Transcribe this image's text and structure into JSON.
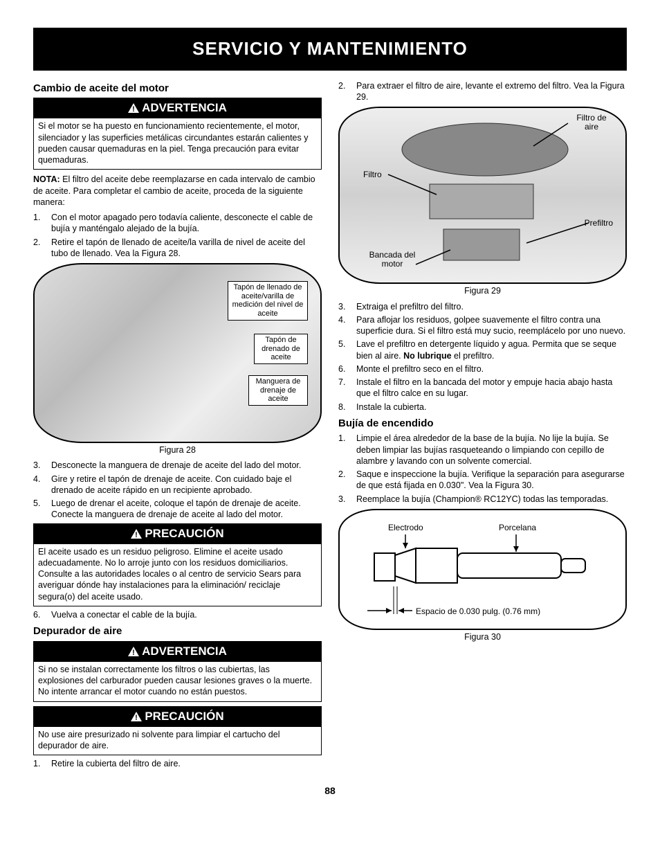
{
  "header": "SERVICIO Y MANTENIMIENTO",
  "pageNumber": "88",
  "banners": {
    "advertencia": "ADVERTENCIA",
    "precaucion": "PRECAUCIÓN"
  },
  "left": {
    "h_oil": "Cambio de aceite del motor",
    "warn1": "Si el motor se ha puesto en funcionamiento recientemente, el motor, silenciador y las superficies metálicas circundantes estarán calientes y pueden causar quemaduras en la piel. Tenga precaución para evitar quemaduras.",
    "nota_label": "NOTA:",
    "nota": " El filtro del aceite debe reemplazarse en cada intervalo de cambio de aceite. Para completar el cambio de aceite, proceda de la siguiente manera:",
    "list1": [
      {
        "n": "1.",
        "t": "Con el motor apagado pero todavía caliente, desconecte el cable de bujía y manténgalo alejado de la bujía."
      },
      {
        "n": "2.",
        "t": "Retire el tapón de llenado de aceite/la varilla de nivel de aceite del tubo de llenado. Vea la Figura 28."
      }
    ],
    "fig28": {
      "caption": "Figura 28",
      "c1": "Tapón de llenado de aceite/varilla de medición del nivel de aceite",
      "c2": "Tapón de drenado de aceite",
      "c3": "Manguera de drenaje de aceite"
    },
    "list2": [
      {
        "n": "3.",
        "t": "Desconecte la manguera de drenaje de aceite del lado del motor."
      },
      {
        "n": "4.",
        "t": "Gire y retire el tapón de drenaje de aceite. Con cuidado baje el drenado de aceite rápido en un recipiente aprobado."
      },
      {
        "n": "5.",
        "t": "Luego de drenar el aceite, coloque el tapón de drenaje de aceite. Conecte la manguera de drenaje de aceite al lado del motor."
      }
    ],
    "precaucion1": "El aceite usado es un residuo peligroso. Elimine el aceite usado adecuadamente. No lo arroje junto con los residuos domiciliarios. Consulte a las autoridades locales o al centro de servicio Sears para averiguar dónde hay instalaciones para la eliminación/ reciclaje segura(o) del aceite usado.",
    "list3": [
      {
        "n": "6.",
        "t": "Vuelva a conectar el cable de la bujía."
      }
    ],
    "h_air": "Depurador de aire",
    "warn2": "Si no se instalan correctamente los filtros o las cubiertas, las explosiones del carburador pueden causar lesiones graves o la muerte. No intente arrancar el motor cuando no están puestos.",
    "precaucion2": "No use aire presurizado ni solvente para limpiar el cartucho del depurador de aire.",
    "list4": [
      {
        "n": "1.",
        "t": "Retire la cubierta del filtro de aire."
      }
    ]
  },
  "right": {
    "intro": [
      {
        "n": "2.",
        "t": "Para extraer el filtro de aire, levante el extremo del filtro. Vea la Figura 29."
      }
    ],
    "fig29": {
      "caption": "Figura 29",
      "l1": "Filtro de aire",
      "l2": "Filtro",
      "l3": "Prefiltro",
      "l4": "Bancada del motor"
    },
    "list1": [
      {
        "n": "3.",
        "t": "Extraiga el prefiltro del filtro."
      },
      {
        "n": "4.",
        "t": "Para aflojar los residuos, golpee suavemente el filtro contra una superficie dura. Si el filtro está muy sucio, reemplácelo por uno nuevo."
      },
      {
        "n": "5.",
        "t": "Lave el prefiltro en detergente líquido y agua. Permita que se seque bien al aire. <b>No lubrique</b> el prefiltro."
      },
      {
        "n": "6.",
        "t": "Monte el prefiltro seco en el filtro."
      },
      {
        "n": "7.",
        "t": "Instale el filtro en la bancada del motor y empuje hacia abajo hasta que el filtro calce en su lugar."
      },
      {
        "n": "8.",
        "t": "Instale la cubierta."
      }
    ],
    "h_spark": "Bujía de encendido",
    "list2": [
      {
        "n": "1.",
        "t": "Limpie el área alrededor de la base de la bujía. No lije la bujía. Se deben limpiar las bujías rasqueteando o limpiando con cepillo de alambre y lavando con un solvente comercial."
      },
      {
        "n": "2.",
        "t": "Saque e inspeccione la bujía. Verifique la separación para asegurarse de que está fijada en 0.030\". Vea la Figura 30."
      },
      {
        "n": "3.",
        "t": "Reemplace la bujía (Champion® RC12YC) todas las temporadas."
      }
    ],
    "fig30": {
      "caption": "Figura 30",
      "l1": "Electrodo",
      "l2": "Porcelana",
      "l3": "Espacio de 0.030 pulg. (0.76 mm)"
    }
  }
}
